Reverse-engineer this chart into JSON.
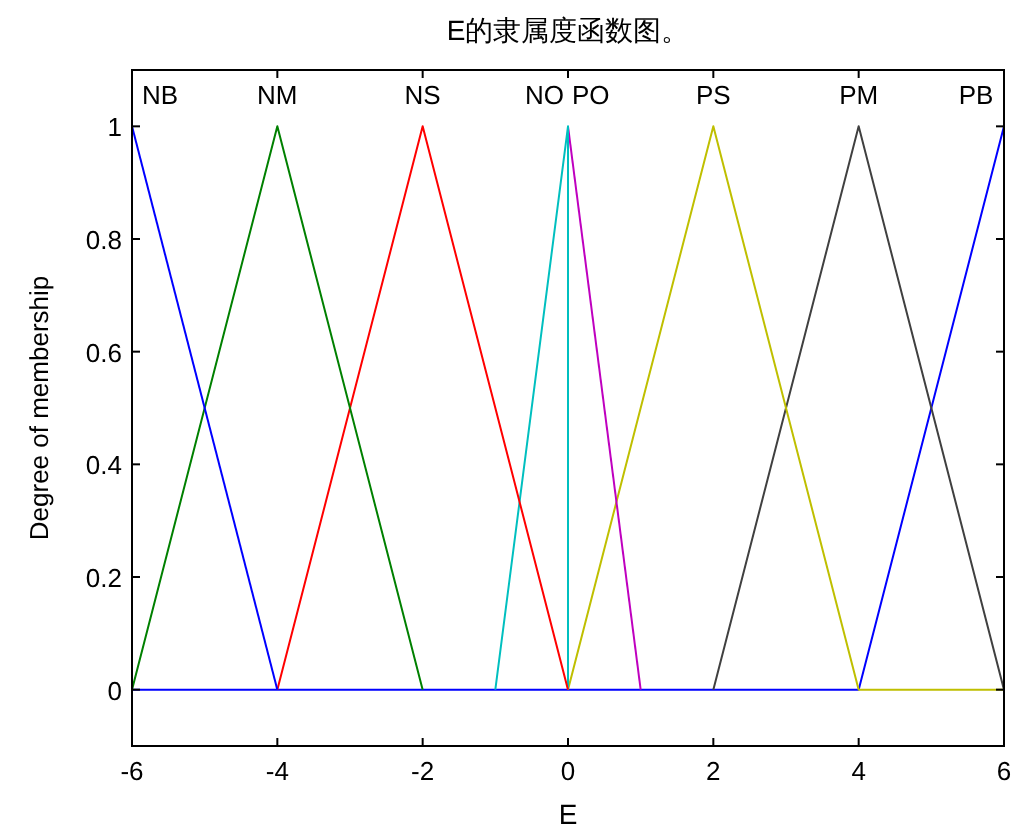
{
  "chart_data": {
    "type": "line",
    "title": "E的隶属度函数图。",
    "xlabel": "E",
    "ylabel": "Degree of membership",
    "xlim": [
      -6,
      6
    ],
    "xticks": [
      -6,
      -4,
      -2,
      0,
      2,
      4,
      6
    ],
    "ylim": [
      -0.1,
      1.1
    ],
    "yticks": [
      0,
      0.2,
      0.4,
      0.6,
      0.8,
      1
    ],
    "grid": false,
    "legend": false,
    "marker": "none",
    "line_style": "solid",
    "series": [
      {
        "name": "NB",
        "color": "#0000ff",
        "x": [
          -6,
          -4
        ],
        "values": [
          1,
          0
        ]
      },
      {
        "name": "NM",
        "color": "#008000",
        "x": [
          -6,
          -4,
          -2
        ],
        "values": [
          0,
          1,
          0
        ]
      },
      {
        "name": "NS",
        "color": "#ff0000",
        "x": [
          -4,
          -2,
          0
        ],
        "values": [
          0,
          1,
          0
        ]
      },
      {
        "name": "NO",
        "color": "#00bfbf",
        "x": [
          -1,
          0,
          0
        ],
        "values": [
          0,
          1,
          0
        ]
      },
      {
        "name": "PO",
        "color": "#bf00bf",
        "x": [
          0,
          1
        ],
        "values": [
          1,
          0
        ]
      },
      {
        "name": "PS",
        "color": "#bfbf00",
        "x": [
          0,
          2,
          4,
          6
        ],
        "values": [
          0,
          1,
          0,
          0
        ]
      },
      {
        "name": "PM",
        "color": "#404040",
        "x": [
          2,
          4,
          6
        ],
        "values": [
          0,
          1,
          0
        ]
      },
      {
        "name": "PB",
        "color": "#0000ff",
        "x": [
          -6,
          4,
          6
        ],
        "values": [
          0,
          0,
          1
        ]
      }
    ]
  }
}
